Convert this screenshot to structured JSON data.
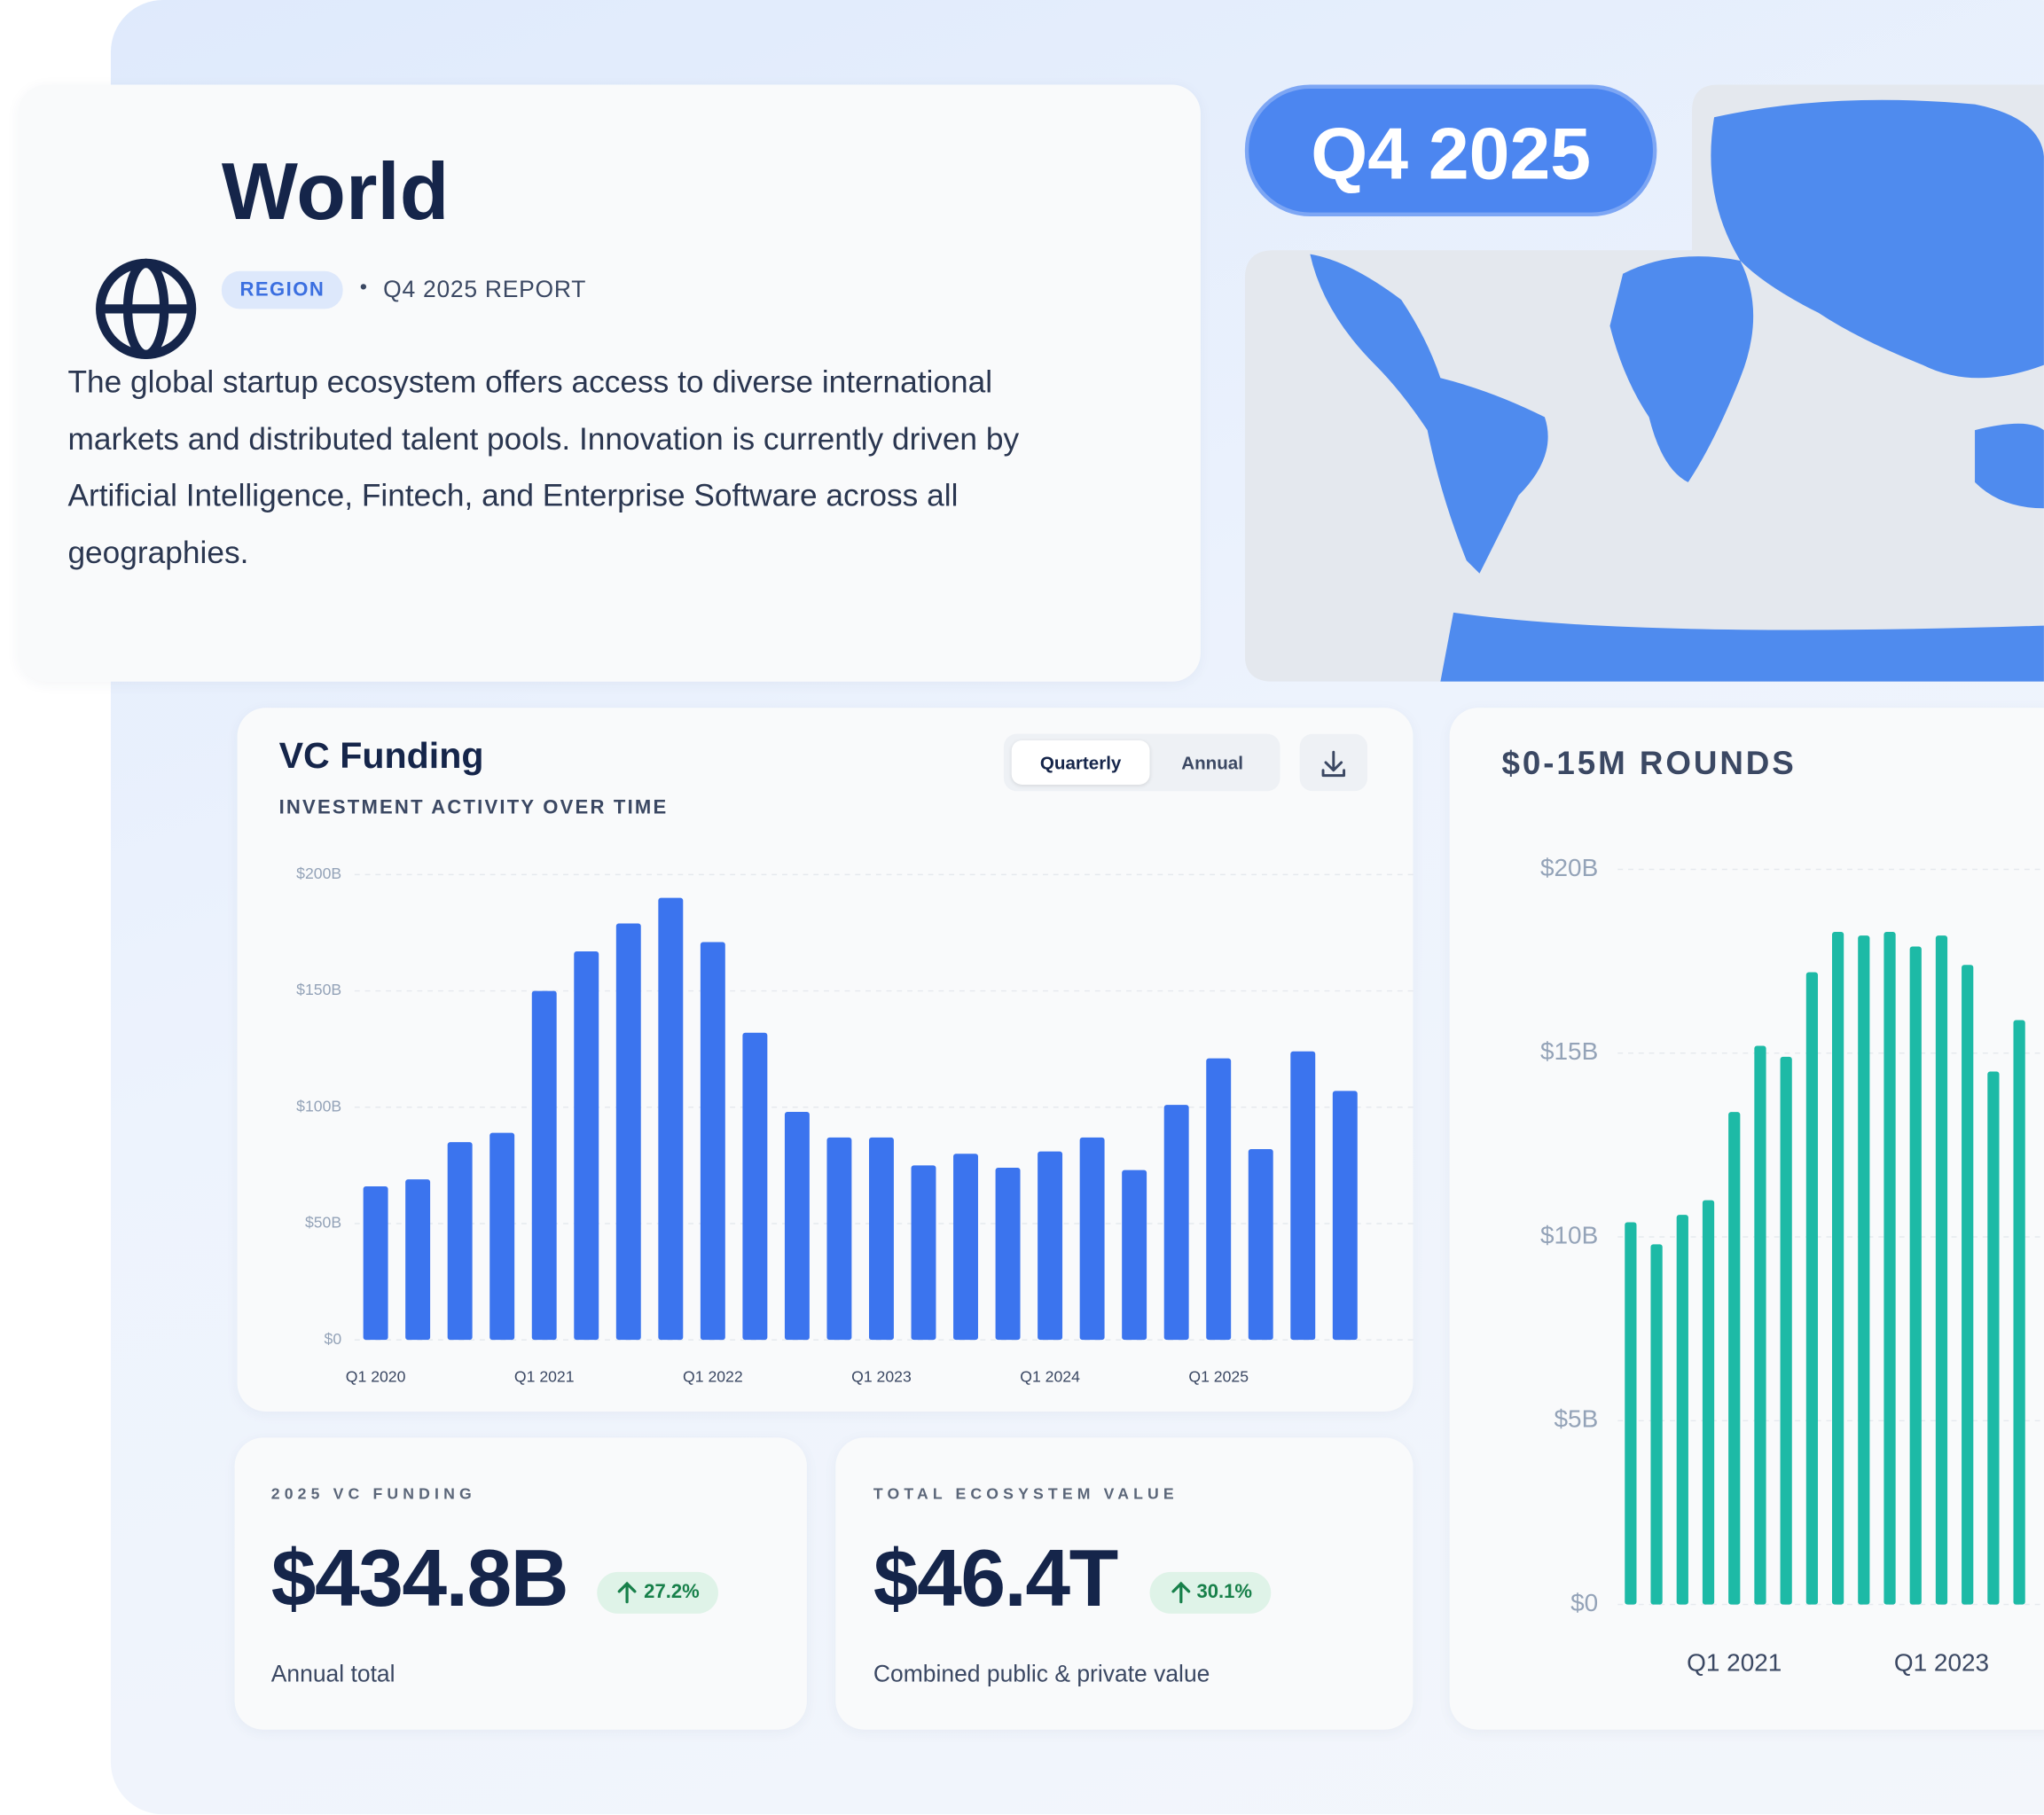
{
  "header": {
    "title": "World",
    "tag": "REGION",
    "report": "Q4 2025 REPORT",
    "description": "The global startup ecosystem offers access to diverse international markets and distributed talent pools. Innovation is currently driven by Artificial Intelligence, Fintech, and Enterprise Software across all geographies."
  },
  "period": "Q4 2025",
  "toggle": [
    "Quarterly",
    "Annual"
  ],
  "stats": [
    {
      "label": "2025 VC FUNDING",
      "value": "$434.8B",
      "change": "27.2%",
      "note": "Annual total"
    },
    {
      "label": "TOTAL ECOSYSTEM VALUE",
      "value": "$46.4T",
      "change": "30.1%",
      "note": "Combined public & private value"
    }
  ],
  "chart_data": [
    {
      "type": "bar",
      "title": "VC Funding",
      "subtitle": "INVESTMENT ACTIVITY OVER TIME",
      "color": "#3b74ee",
      "grid": true,
      "categories": [
        "Q1 2020",
        null,
        null,
        null,
        "Q1 2021",
        null,
        null,
        null,
        "Q1 2022",
        null,
        null,
        null,
        "Q1 2023",
        null,
        null,
        null,
        "Q1 2024",
        null,
        null,
        null,
        "Q1 2025",
        null,
        null,
        null
      ],
      "values": [
        66,
        69,
        85,
        89,
        150,
        167,
        179,
        190,
        171,
        132,
        98,
        87,
        87,
        75,
        80,
        74,
        81,
        87,
        73,
        101,
        121,
        82,
        124,
        107
      ],
      "ylim": [
        0,
        200
      ],
      "yticks": [
        {
          "value": 0,
          "label": "$0"
        },
        {
          "value": 50,
          "label": "$50B"
        },
        {
          "value": 100,
          "label": "$100B"
        },
        {
          "value": 150,
          "label": "$150B"
        },
        {
          "value": 200,
          "label": "$200B"
        }
      ]
    },
    {
      "type": "bar",
      "title": "$0-15M ROUNDS",
      "color": "#1dbaa6",
      "grid": true,
      "categories": [
        null,
        null,
        null,
        null,
        "Q1 2021",
        null,
        null,
        null,
        null,
        null,
        null,
        null,
        "Q1 2023",
        null,
        null,
        null
      ],
      "values": [
        10.4,
        9.8,
        10.6,
        11.0,
        13.4,
        15.2,
        14.9,
        17.2,
        18.3,
        18.2,
        18.3,
        17.9,
        18.2,
        17.4,
        14.5,
        15.9
      ],
      "ylim": [
        0,
        20
      ],
      "yticks": [
        {
          "value": 0,
          "label": "$0"
        },
        {
          "value": 5,
          "label": "$5B"
        },
        {
          "value": 10,
          "label": "$10B"
        },
        {
          "value": 15,
          "label": "$15B"
        },
        {
          "value": 20,
          "label": "$20B"
        }
      ]
    }
  ]
}
